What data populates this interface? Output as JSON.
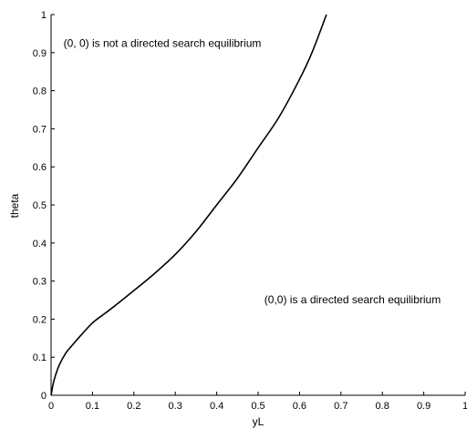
{
  "chart_data": {
    "type": "line",
    "title": "",
    "xlabel": "yL",
    "ylabel": "theta",
    "xlim": [
      0,
      1
    ],
    "ylim": [
      0,
      1
    ],
    "xticks": [
      "0",
      "0.1",
      "0.2",
      "0.3",
      "0.4",
      "0.5",
      "0.6",
      "0.7",
      "0.8",
      "0.9",
      "1"
    ],
    "yticks": [
      "0",
      "0.1",
      "0.2",
      "0.3",
      "0.4",
      "0.5",
      "0.6",
      "0.7",
      "0.8",
      "0.9",
      "1"
    ],
    "grid": false,
    "legend": "none",
    "series": [
      {
        "color": "#000000",
        "x": [
          0,
          0.005,
          0.01,
          0.02,
          0.035,
          0.05,
          0.07,
          0.1,
          0.13,
          0.16,
          0.2,
          0.25,
          0.3,
          0.35,
          0.4,
          0.45,
          0.5,
          0.55,
          0.6,
          0.63,
          0.665
        ],
        "y": [
          0,
          0.03,
          0.05,
          0.08,
          0.11,
          0.13,
          0.155,
          0.19,
          0.215,
          0.24,
          0.275,
          0.32,
          0.37,
          0.43,
          0.5,
          0.57,
          0.65,
          0.73,
          0.83,
          0.9,
          1.0
        ]
      }
    ],
    "annotations": [
      {
        "text": "(0, 0) is not a directed search equilibrium",
        "x": 0.03,
        "y": 0.915
      },
      {
        "text": "(0,0) is a directed search equilibrium",
        "x": 0.515,
        "y": 0.242
      }
    ]
  }
}
